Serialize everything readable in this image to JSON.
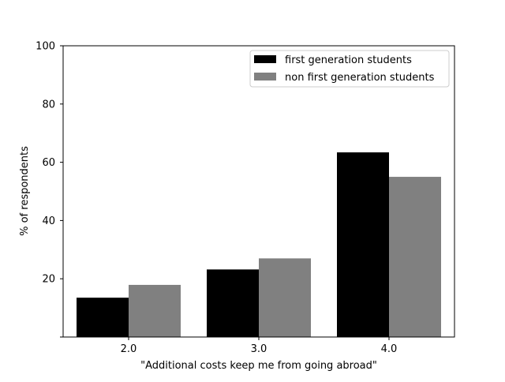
{
  "chart_data": {
    "type": "bar",
    "title": "",
    "xlabel": "\"Additional costs keep me from going abroad\"",
    "ylabel": "% of respondents",
    "categories": [
      "2.0",
      "3.0",
      "4.0"
    ],
    "ylim": [
      0,
      100
    ],
    "yticks": [
      "20",
      "40",
      "60",
      "80",
      "100"
    ],
    "grid": false,
    "legend_position": "top-right",
    "series": [
      {
        "name": "first generation students",
        "color": "#000000",
        "values": [
          13.5,
          23.2,
          63.4
        ]
      },
      {
        "name": "non first generation students",
        "color": "#808080",
        "values": [
          17.9,
          27.0,
          55.0
        ]
      }
    ]
  }
}
